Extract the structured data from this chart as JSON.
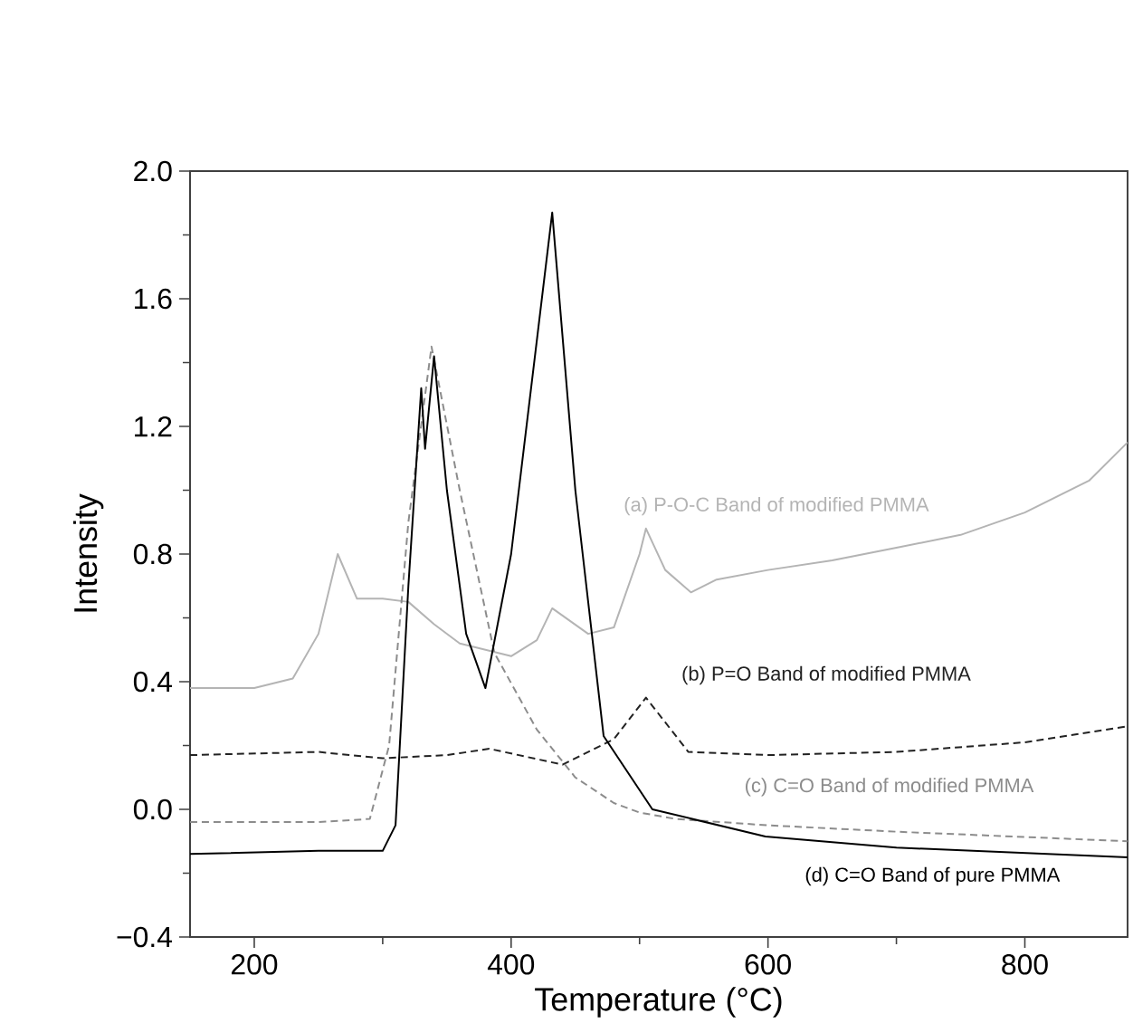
{
  "chart_data": {
    "type": "line",
    "xlabel": "Temperature (°C)",
    "ylabel": "Intensity",
    "xlim": [
      150,
      880
    ],
    "ylim": [
      -0.4,
      2.0
    ],
    "xticks": [
      200,
      400,
      600,
      800
    ],
    "yticks": [
      {
        "value": -0.4,
        "label": "−0.4"
      },
      {
        "value": 0.0,
        "label": "0.0"
      },
      {
        "value": 0.4,
        "label": "0.4"
      },
      {
        "value": 0.8,
        "label": "0.8"
      },
      {
        "value": 1.2,
        "label": "1.2"
      },
      {
        "value": 1.6,
        "label": "1.6"
      },
      {
        "value": 2.0,
        "label": "2.0"
      }
    ],
    "grid": false,
    "legend": false,
    "marker": "none",
    "series": [
      {
        "name": "(a) P-O-C Band of modified PMMA",
        "color": "#b4b4b4",
        "line_style": "solid",
        "x": [
          150,
          200,
          230,
          250,
          265,
          280,
          300,
          320,
          340,
          360,
          380,
          400,
          420,
          432,
          460,
          480,
          500,
          505,
          520,
          540,
          560,
          600,
          650,
          700,
          750,
          800,
          850,
          880
        ],
        "values": [
          0.38,
          0.38,
          0.41,
          0.55,
          0.8,
          0.66,
          0.66,
          0.65,
          0.58,
          0.52,
          0.5,
          0.48,
          0.53,
          0.63,
          0.55,
          0.57,
          0.8,
          0.88,
          0.75,
          0.68,
          0.72,
          0.75,
          0.78,
          0.82,
          0.86,
          0.93,
          1.03,
          1.15
        ]
      },
      {
        "name": "(b) P=O Band of modified PMMA",
        "color": "#222222",
        "line_style": "dashed",
        "x": [
          150,
          250,
          300,
          350,
          383,
          440,
          480,
          505,
          538,
          600,
          700,
          800,
          880
        ],
        "values": [
          0.17,
          0.18,
          0.16,
          0.17,
          0.19,
          0.14,
          0.22,
          0.35,
          0.18,
          0.17,
          0.18,
          0.21,
          0.26
        ]
      },
      {
        "name": "(c) C=O Band of modified PMMA",
        "color": "#8c8c8c",
        "line_style": "dashed",
        "x": [
          150,
          250,
          290,
          305,
          320,
          338,
          360,
          387,
          420,
          450,
          480,
          500,
          528,
          600,
          700,
          880
        ],
        "values": [
          -0.04,
          -0.04,
          -0.03,
          0.2,
          0.9,
          1.45,
          1.0,
          0.49,
          0.25,
          0.1,
          0.02,
          -0.01,
          -0.03,
          -0.05,
          -0.07,
          -0.1
        ]
      },
      {
        "name": "(d) C=O Band of pure PMMA",
        "color": "#000000",
        "line_style": "solid",
        "x": [
          150,
          250,
          300,
          310,
          320,
          330,
          333,
          340,
          350,
          365,
          380,
          400,
          432,
          450,
          472,
          510,
          598,
          700,
          880
        ],
        "values": [
          -0.14,
          -0.13,
          -0.13,
          -0.05,
          0.7,
          1.32,
          1.13,
          1.42,
          1.0,
          0.55,
          0.38,
          0.8,
          1.87,
          1.0,
          0.23,
          0.0,
          -0.085,
          -0.12,
          -0.15
        ]
      }
    ]
  }
}
